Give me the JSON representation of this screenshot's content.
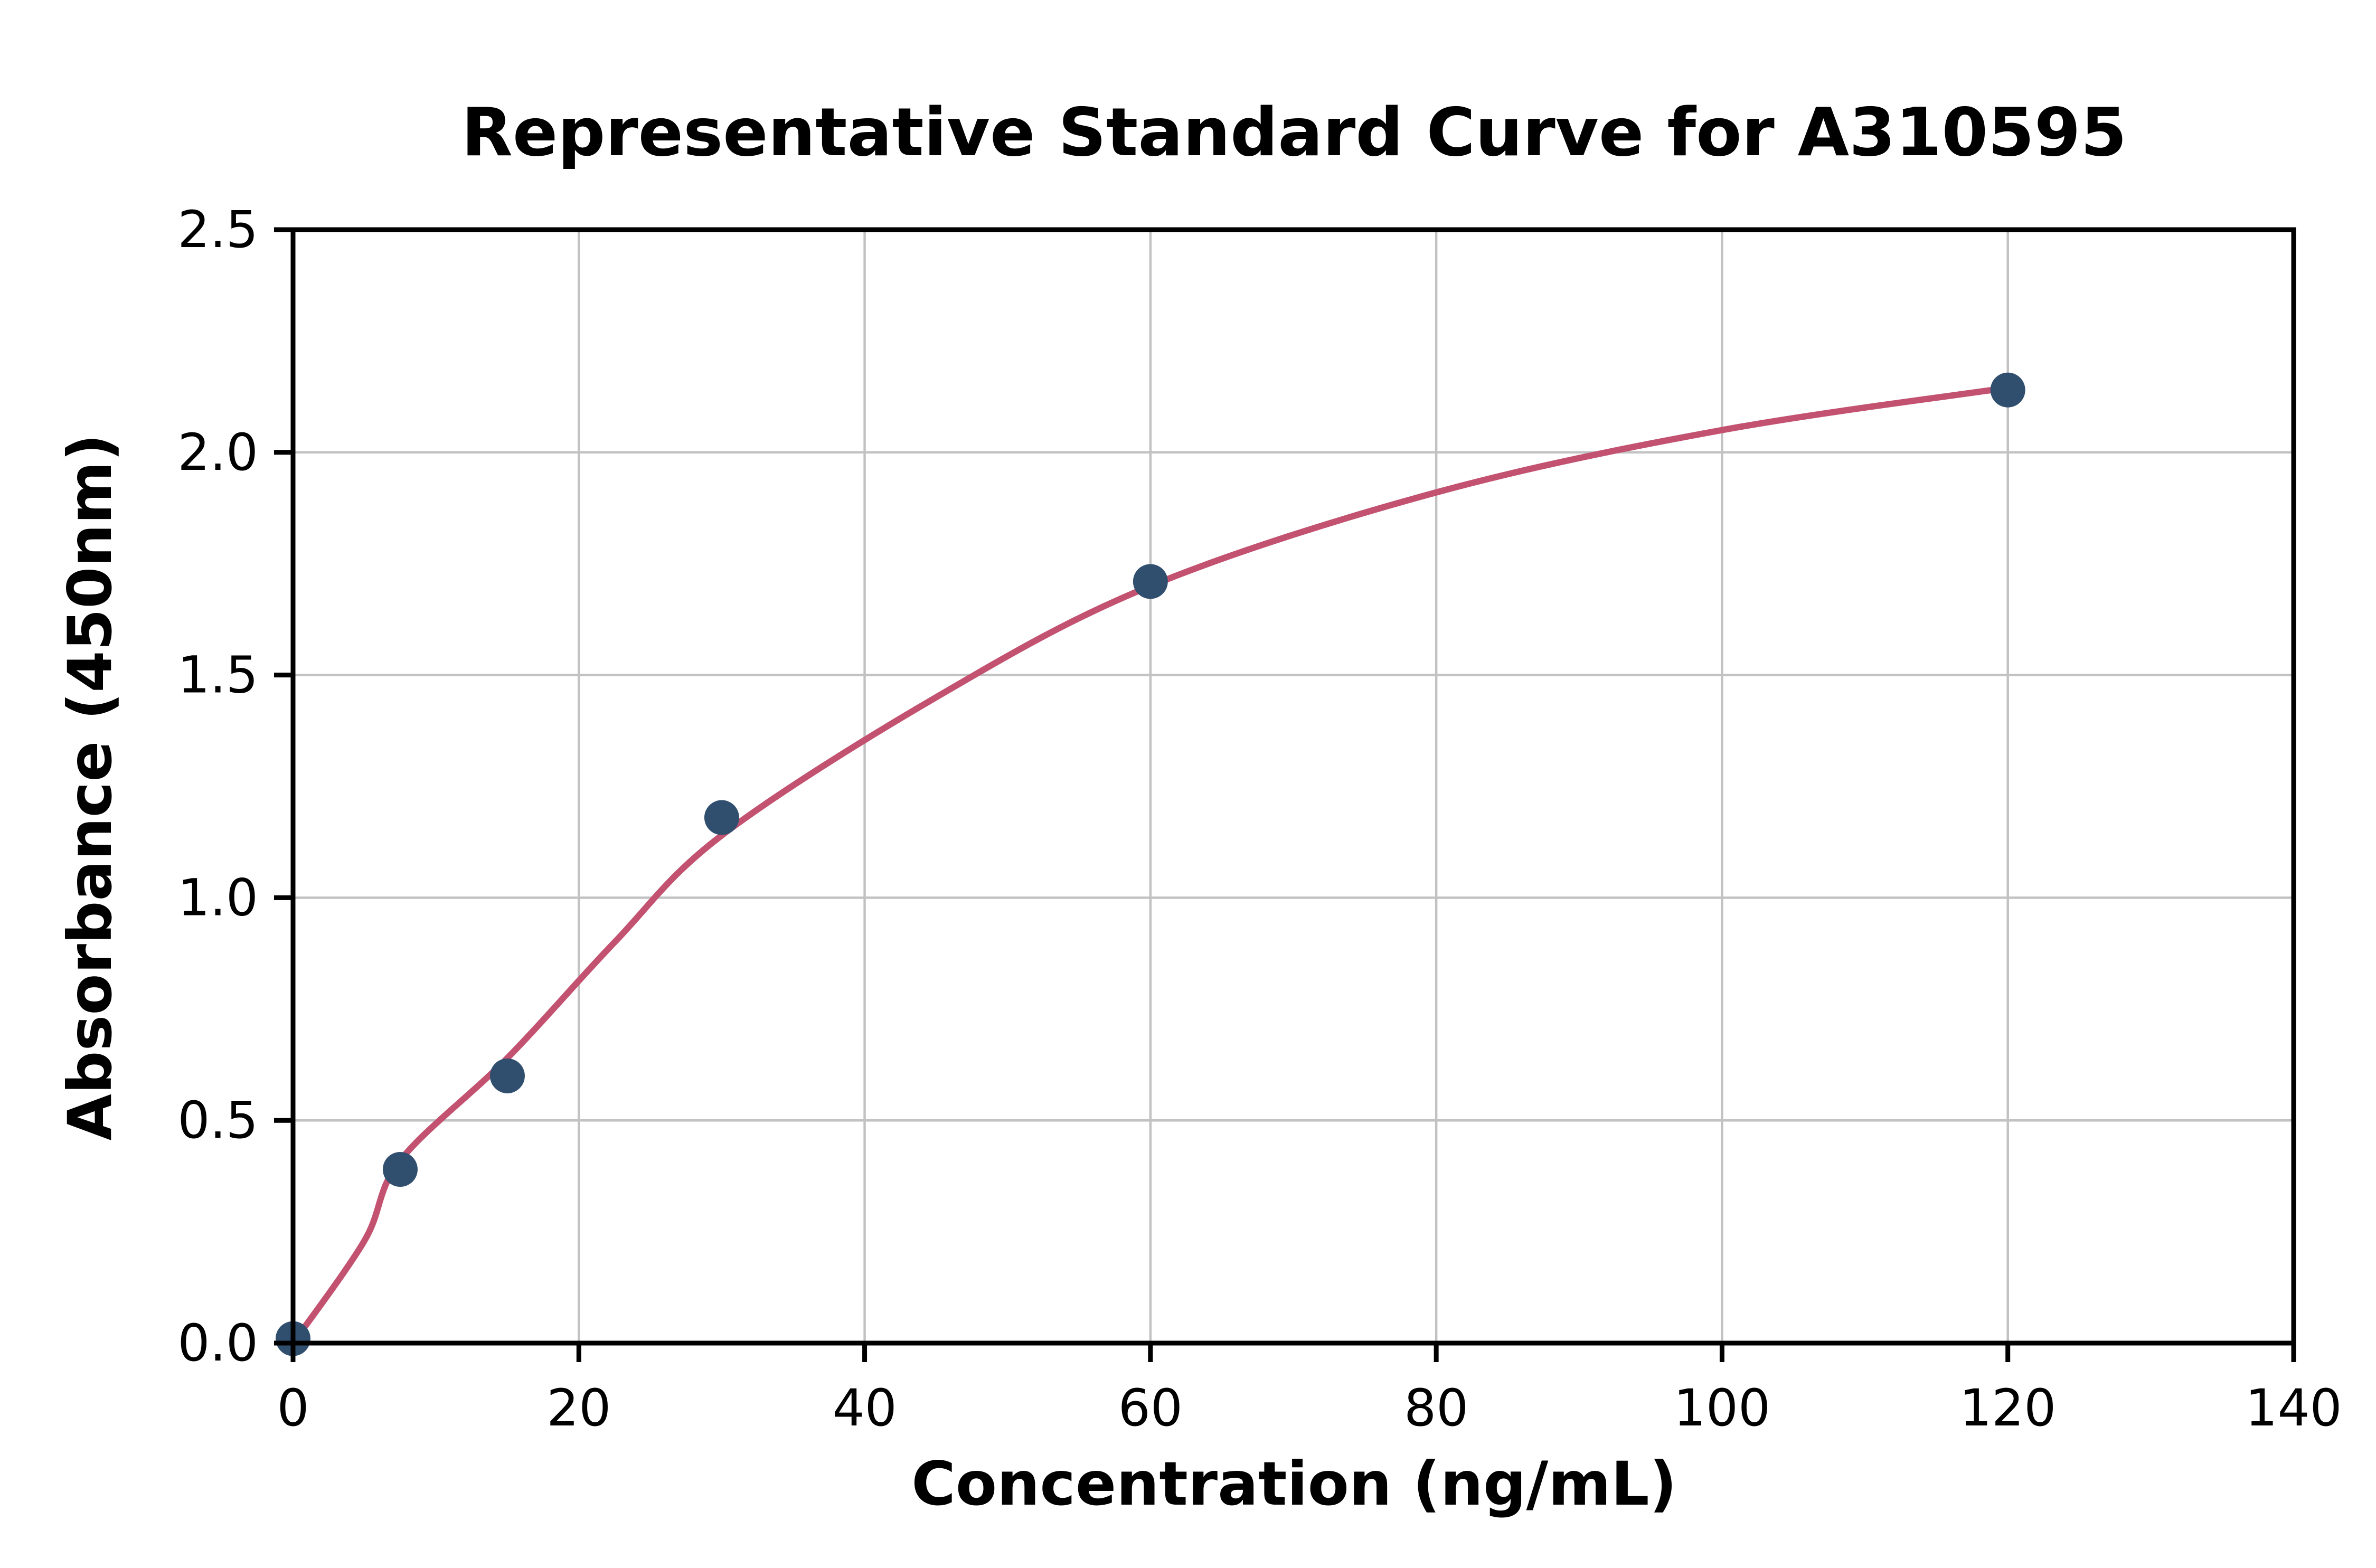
{
  "chart_data": {
    "type": "scatter",
    "title": "Representative Standard Curve for A310595",
    "xlabel": "Concentration (ng/mL)",
    "ylabel": "Absorbance (450nm)",
    "xlim": [
      0,
      140
    ],
    "ylim": [
      0,
      2.5
    ],
    "x_ticks": [
      0,
      20,
      40,
      60,
      80,
      100,
      120,
      140
    ],
    "x_tick_labels": [
      "0",
      "20",
      "40",
      "60",
      "80",
      "100",
      "120",
      "140"
    ],
    "y_ticks": [
      0,
      0.5,
      1,
      1.5,
      2,
      2.5
    ],
    "y_tick_labels": [
      "0.0",
      "0.5",
      "1.0",
      "1.5",
      "2.0",
      "2.5"
    ],
    "grid": true,
    "legend": "none",
    "series": [
      {
        "name": "fit-curve",
        "type": "line",
        "color": "#c25270",
        "points": [
          [
            0,
            0
          ],
          [
            5,
            0.23
          ],
          [
            7.5,
            0.41
          ],
          [
            15,
            0.64
          ],
          [
            22.5,
            0.9
          ],
          [
            30,
            1.14
          ],
          [
            45,
            1.45
          ],
          [
            60,
            1.7
          ],
          [
            80,
            1.91
          ],
          [
            100,
            2.05
          ],
          [
            120,
            2.145
          ]
        ]
      },
      {
        "name": "standards",
        "type": "scatter",
        "color": "#304f6e",
        "points": [
          [
            0,
            0.01
          ],
          [
            7.5,
            0.39
          ],
          [
            15,
            0.6
          ],
          [
            30,
            1.18
          ],
          [
            60,
            1.71
          ],
          [
            120,
            2.14
          ]
        ]
      }
    ],
    "styles": {
      "grid_color": "#c2c2c2",
      "axis_color": "#000000",
      "background": "#ffffff",
      "marker_radius": 11,
      "line_width": 4
    }
  }
}
